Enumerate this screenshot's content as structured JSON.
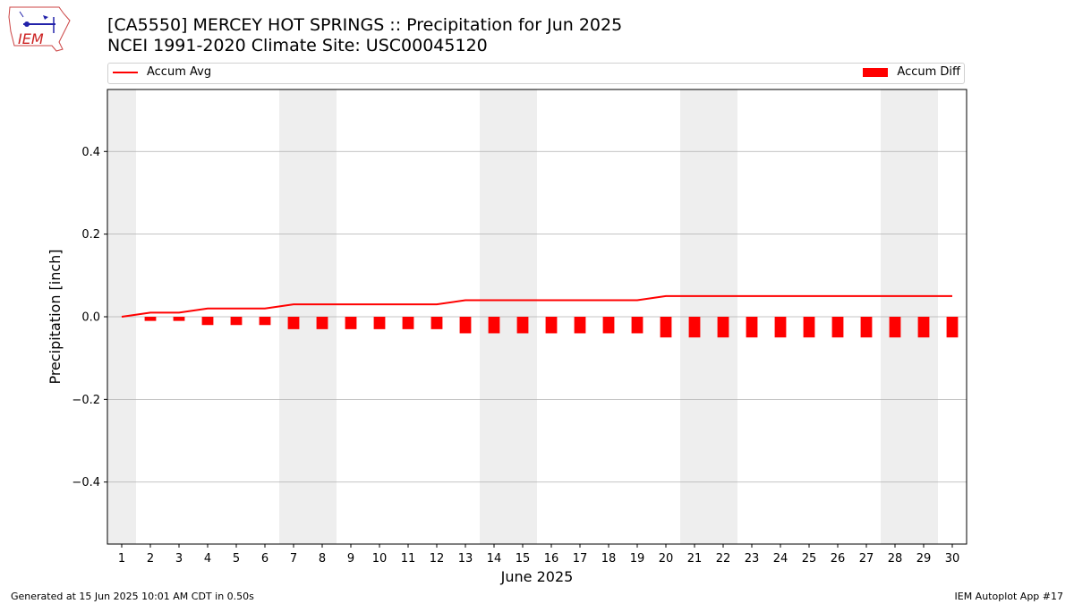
{
  "header": {
    "title_line1": "[CA5550] MERCEY HOT SPRINGS :: Precipitation for Jun 2025",
    "title_line2": "NCEI 1991-2020 Climate Site: USC00045120",
    "logo_text": "IEM"
  },
  "footer": {
    "generated": "Generated at 15 Jun 2025 10:01 AM CDT in 0.50s",
    "app": "IEM Autoplot App #17"
  },
  "colors": {
    "series": "#ff0000",
    "weekend_shade": "#eeeeee",
    "grid": "#b0b0b0"
  },
  "chart_data": {
    "type": "bar",
    "xlabel": "June 2025",
    "ylabel": "Precipitation [inch]",
    "ylim": [
      -0.55,
      0.55
    ],
    "yticks": [
      -0.4,
      -0.2,
      0.0,
      0.2,
      0.4
    ],
    "ytick_labels": [
      "−0.4",
      "−0.2",
      "0.0",
      "0.2",
      "0.4"
    ],
    "categories": [
      1,
      2,
      3,
      4,
      5,
      6,
      7,
      8,
      9,
      10,
      11,
      12,
      13,
      14,
      15,
      16,
      17,
      18,
      19,
      20,
      21,
      22,
      23,
      24,
      25,
      26,
      27,
      28,
      29,
      30
    ],
    "weekend_days": [
      1,
      7,
      8,
      14,
      15,
      21,
      22,
      28,
      29
    ],
    "grid": "y",
    "legend_position": "top",
    "series": [
      {
        "name": "Accum Avg",
        "type": "line",
        "values": [
          0.0,
          0.01,
          0.01,
          0.02,
          0.02,
          0.02,
          0.03,
          0.03,
          0.03,
          0.03,
          0.03,
          0.03,
          0.04,
          0.04,
          0.04,
          0.04,
          0.04,
          0.04,
          0.04,
          0.05,
          0.05,
          0.05,
          0.05,
          0.05,
          0.05,
          0.05,
          0.05,
          0.05,
          0.05,
          0.05
        ]
      },
      {
        "name": "Accum Diff",
        "type": "bar",
        "values": [
          0.0,
          -0.01,
          -0.01,
          -0.02,
          -0.02,
          -0.02,
          -0.03,
          -0.03,
          -0.03,
          -0.03,
          -0.03,
          -0.03,
          -0.04,
          -0.04,
          -0.04,
          -0.04,
          -0.04,
          -0.04,
          -0.04,
          -0.05,
          -0.05,
          -0.05,
          -0.05,
          -0.05,
          -0.05,
          -0.05,
          -0.05,
          -0.05,
          -0.05,
          -0.05
        ]
      }
    ]
  }
}
